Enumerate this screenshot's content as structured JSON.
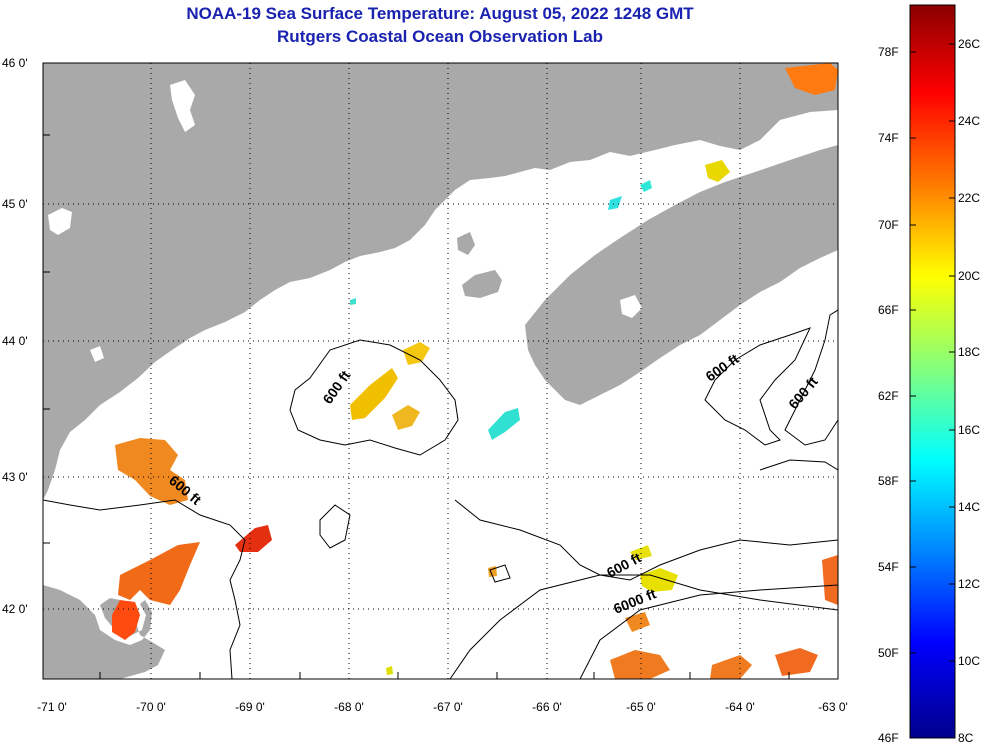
{
  "header": {
    "title_line1": "NOAA-19 Sea Surface Temperature:  August 05, 2022 1248 GMT",
    "title_line2": "Rutgers Coastal Ocean Observation Lab"
  },
  "map": {
    "latitude_labels": [
      "46 0'",
      "45 0'",
      "44 0'",
      "43 0'",
      "42 0'"
    ],
    "longitude_labels": [
      "-71 0'",
      "-70 0'",
      "-69 0'",
      "-68 0'",
      "-67 0'",
      "-66 0'",
      "-65 0'",
      "-64 0'",
      "-63 0'"
    ],
    "lat_range": [
      41.5,
      46.0
    ],
    "lon_range": [
      -71.0,
      -63.0
    ],
    "contour_labels": [
      "600 ft",
      "600 ft",
      "600 ft",
      "600 ft",
      "600 ft",
      "6000 ft"
    ],
    "colors": {
      "land": "#a9a9a9",
      "ocean_no_data": "#ffffff",
      "contour": "#000000",
      "grid": "#000000"
    }
  },
  "colorbar": {
    "fahrenheit_labels": [
      "78F",
      "74F",
      "70F",
      "66F",
      "62F",
      "58F",
      "54F",
      "50F",
      "46F"
    ],
    "celsius_labels": [
      "26C",
      "24C",
      "22C",
      "20C",
      "18C",
      "16C",
      "14C",
      "12C",
      "10C",
      "8C"
    ],
    "range_c": [
      8,
      27
    ],
    "colors_top_to_bottom": [
      "#8b0000",
      "#ff0000",
      "#ff8000",
      "#ffff00",
      "#80ff80",
      "#00ffff",
      "#0080ff",
      "#0000ff",
      "#00008b"
    ]
  }
}
